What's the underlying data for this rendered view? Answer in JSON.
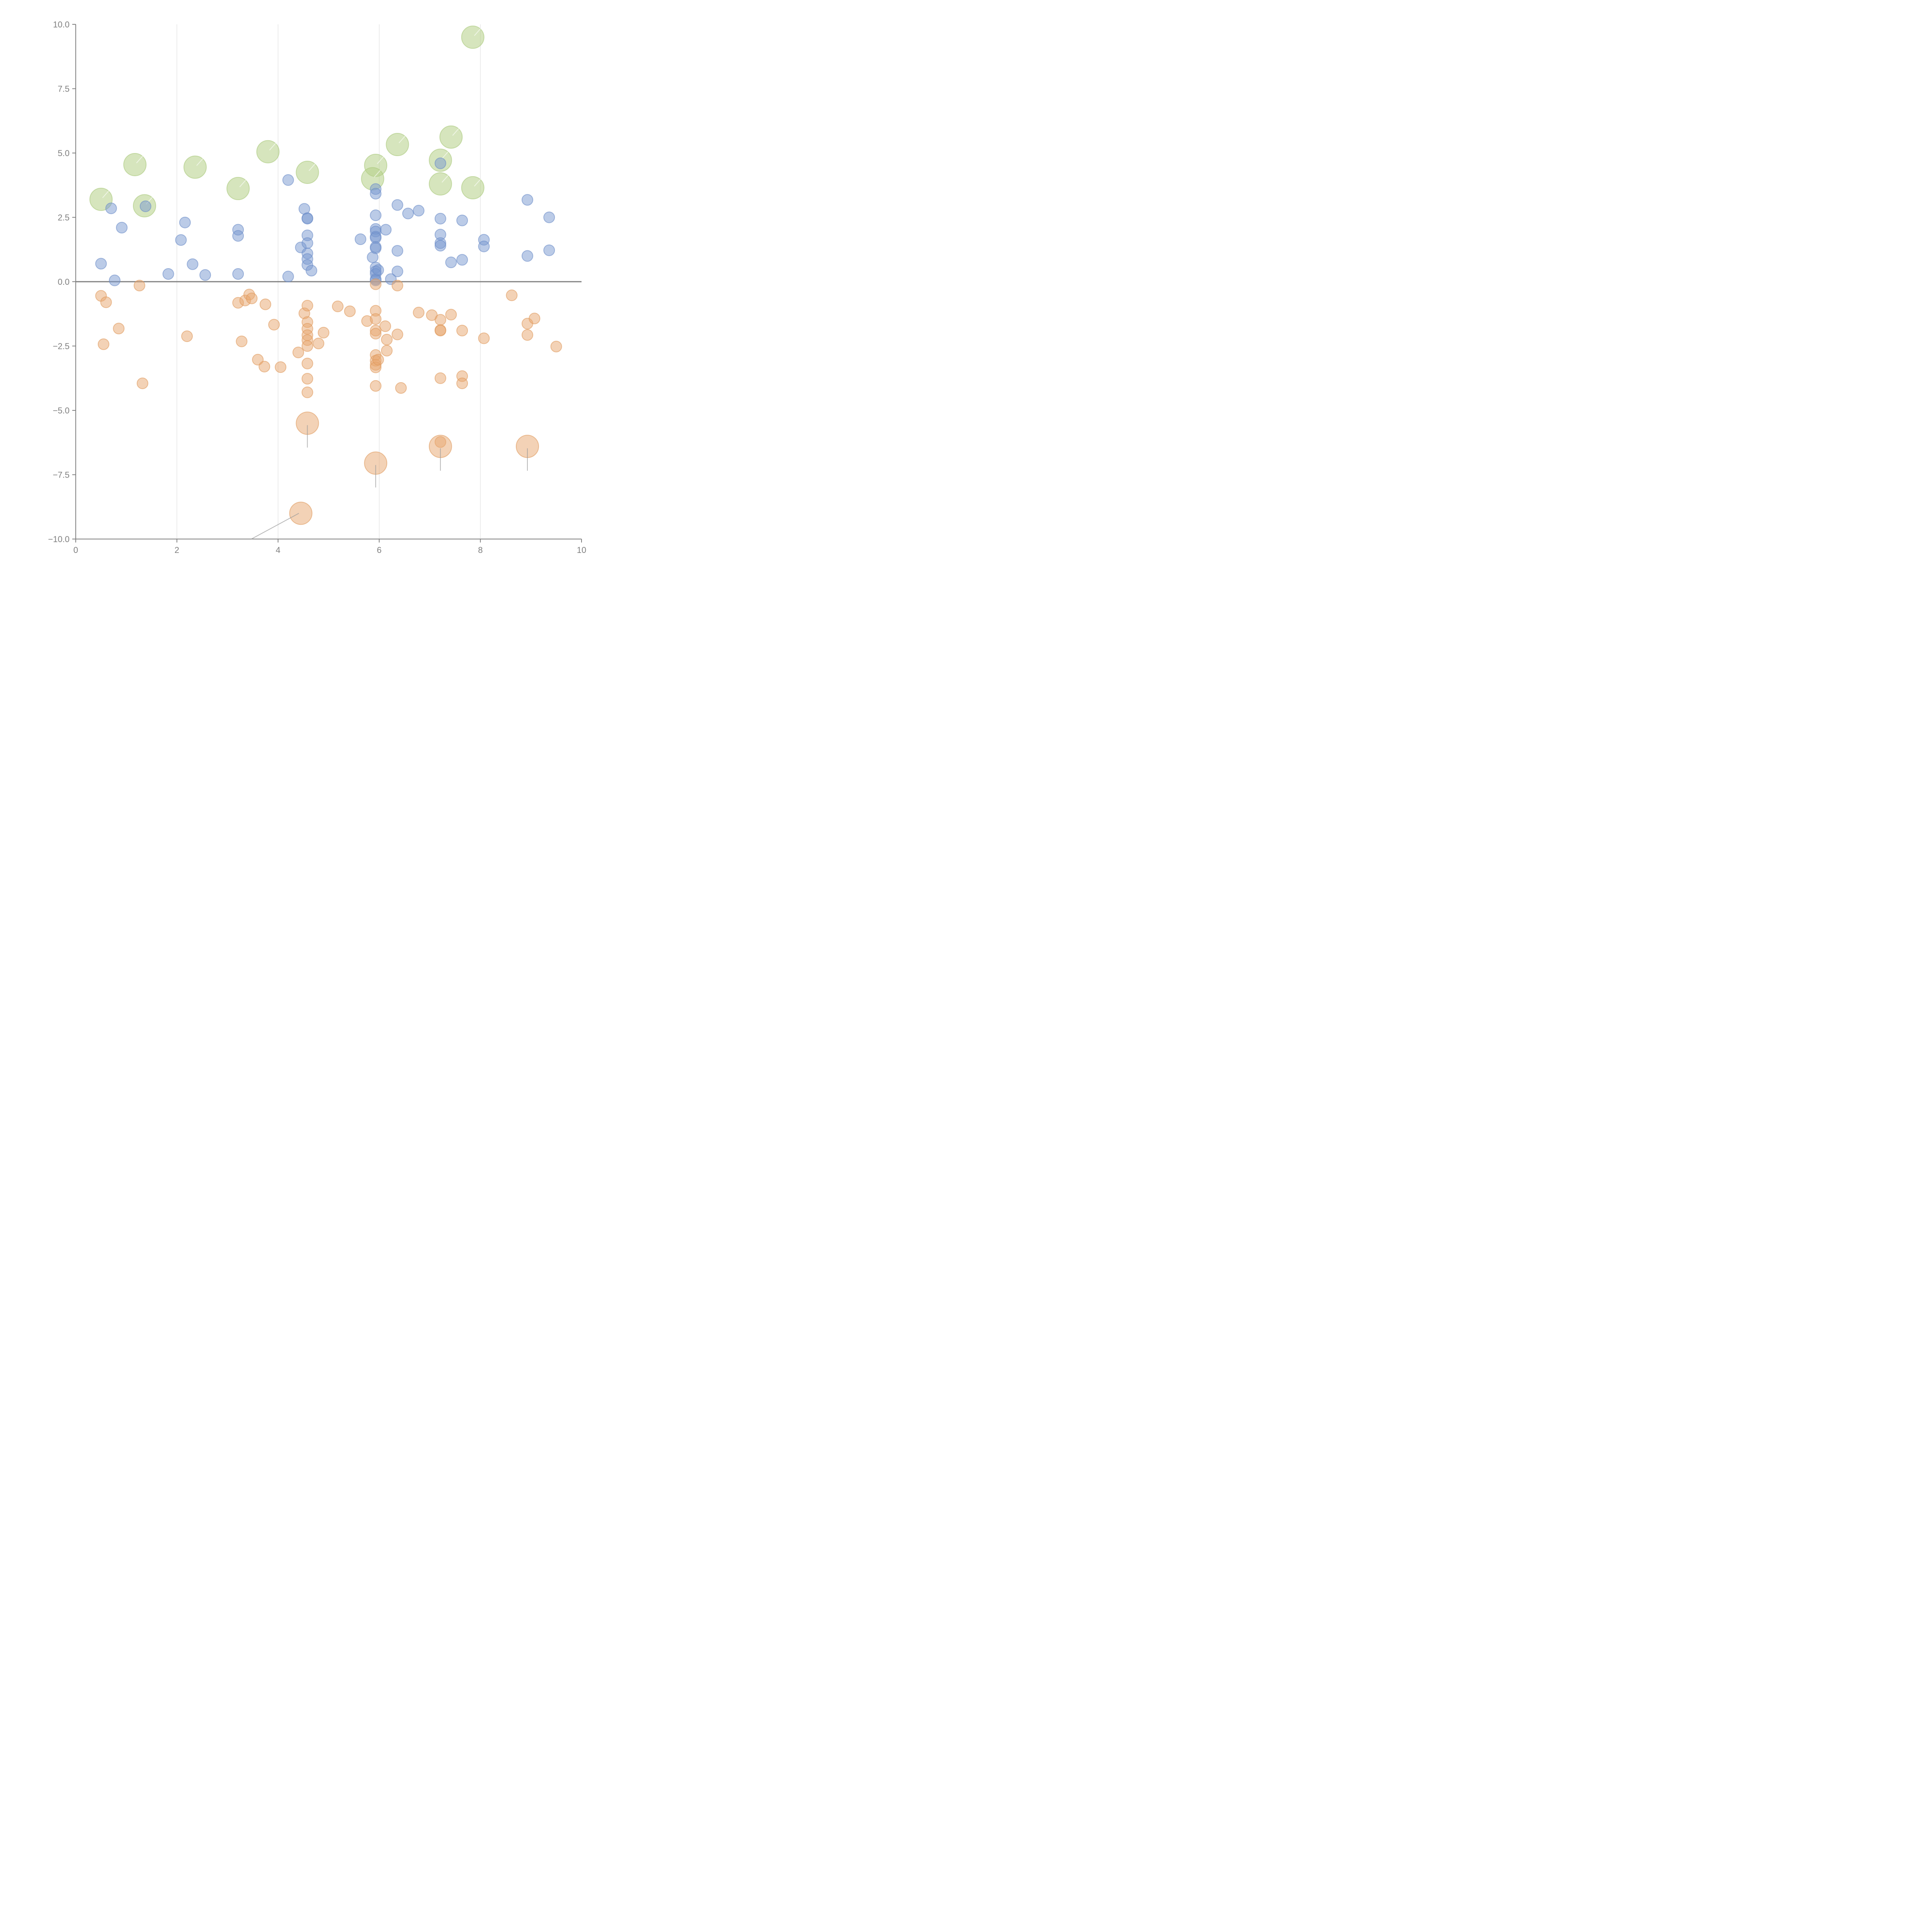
{
  "chart_data": {
    "type": "scatter",
    "title": "",
    "xlabel": "",
    "ylabel": "",
    "xlim": [
      0,
      10
    ],
    "ylim": [
      -10,
      10
    ],
    "grid": "vertical",
    "legend": "none",
    "x_ticks": [
      "0",
      "2",
      "4",
      "6",
      "8",
      "10"
    ],
    "y_ticks": [
      "10.0",
      "7.5",
      "5.0",
      "2.5",
      "0.0",
      "−2.5",
      "−5.0",
      "−7.5",
      "−10.0"
    ],
    "series": [
      {
        "name": "green",
        "color": "#b5cf87",
        "size": "large",
        "points": [
          [
            0.5,
            3.2
          ],
          [
            1.17,
            4.55
          ],
          [
            1.36,
            2.95
          ],
          [
            2.36,
            4.45
          ],
          [
            3.21,
            3.62
          ],
          [
            3.8,
            5.05
          ],
          [
            4.58,
            4.25
          ],
          [
            5.93,
            4.52
          ],
          [
            5.87,
            4.0
          ],
          [
            6.36,
            5.33
          ],
          [
            7.21,
            4.72
          ],
          [
            7.21,
            3.8
          ],
          [
            7.42,
            5.62
          ],
          [
            7.85,
            3.65
          ],
          [
            7.85,
            9.5
          ]
        ]
      },
      {
        "name": "blue",
        "color": "#7898cf",
        "size": "small",
        "points": [
          [
            0.5,
            0.7
          ],
          [
            0.7,
            2.85
          ],
          [
            0.77,
            0.05
          ],
          [
            0.91,
            2.1
          ],
          [
            1.38,
            2.93
          ],
          [
            1.83,
            0.3
          ],
          [
            2.08,
            1.62
          ],
          [
            2.16,
            2.3
          ],
          [
            2.31,
            0.68
          ],
          [
            2.56,
            0.26
          ],
          [
            3.21,
            2.02
          ],
          [
            3.21,
            1.78
          ],
          [
            3.21,
            0.3
          ],
          [
            4.2,
            3.95
          ],
          [
            4.2,
            0.2
          ],
          [
            4.45,
            1.33
          ],
          [
            4.52,
            2.83
          ],
          [
            4.58,
            2.47
          ],
          [
            4.58,
            2.45
          ],
          [
            4.58,
            1.8
          ],
          [
            4.58,
            1.5
          ],
          [
            4.58,
            1.1
          ],
          [
            4.58,
            0.88
          ],
          [
            4.58,
            0.65
          ],
          [
            4.66,
            0.43
          ],
          [
            5.63,
            1.65
          ],
          [
            5.87,
            0.95
          ],
          [
            5.93,
            3.6
          ],
          [
            5.93,
            3.42
          ],
          [
            5.93,
            2.58
          ],
          [
            5.93,
            2.05
          ],
          [
            5.93,
            1.95
          ],
          [
            5.93,
            1.75
          ],
          [
            5.93,
            1.7
          ],
          [
            5.93,
            1.35
          ],
          [
            5.93,
            1.3
          ],
          [
            5.93,
            0.55
          ],
          [
            5.93,
            0.4
          ],
          [
            5.93,
            0.3
          ],
          [
            5.93,
            0.1
          ],
          [
            5.93,
            0.05
          ],
          [
            5.98,
            0.45
          ],
          [
            6.13,
            2.02
          ],
          [
            6.23,
            0.1
          ],
          [
            6.36,
            2.98
          ],
          [
            6.36,
            1.2
          ],
          [
            6.36,
            0.4
          ],
          [
            6.57,
            2.65
          ],
          [
            6.78,
            2.76
          ],
          [
            7.21,
            4.6
          ],
          [
            7.21,
            2.45
          ],
          [
            7.21,
            1.83
          ],
          [
            7.21,
            1.5
          ],
          [
            7.21,
            1.4
          ],
          [
            7.42,
            0.75
          ],
          [
            7.64,
            2.38
          ],
          [
            7.64,
            0.85
          ],
          [
            8.07,
            1.63
          ],
          [
            8.07,
            1.37
          ],
          [
            8.93,
            3.18
          ],
          [
            8.93,
            1.0
          ],
          [
            9.36,
            2.5
          ],
          [
            9.36,
            1.22
          ]
        ]
      },
      {
        "name": "orange",
        "color": "#e8a66e",
        "size": "small",
        "points": [
          [
            0.5,
            -0.55
          ],
          [
            0.55,
            -2.43
          ],
          [
            0.6,
            -0.8
          ],
          [
            0.85,
            -1.82
          ],
          [
            1.26,
            -0.15
          ],
          [
            1.32,
            -3.95
          ],
          [
            2.2,
            -2.12
          ],
          [
            3.21,
            -0.82
          ],
          [
            3.28,
            -2.32
          ],
          [
            3.35,
            -0.73
          ],
          [
            3.43,
            -0.5
          ],
          [
            3.48,
            -0.65
          ],
          [
            3.6,
            -3.03
          ],
          [
            3.73,
            -3.3
          ],
          [
            3.75,
            -0.88
          ],
          [
            3.92,
            -1.67
          ],
          [
            4.05,
            -3.32
          ],
          [
            4.4,
            -2.75
          ],
          [
            4.52,
            -1.23
          ],
          [
            4.58,
            -0.93
          ],
          [
            4.58,
            -1.57
          ],
          [
            4.58,
            -1.83
          ],
          [
            4.58,
            -2.08
          ],
          [
            4.58,
            -2.27
          ],
          [
            4.58,
            -2.5
          ],
          [
            4.58,
            -3.18
          ],
          [
            4.58,
            -3.77
          ],
          [
            4.58,
            -4.3
          ],
          [
            4.8,
            -2.4
          ],
          [
            4.9,
            -1.98
          ],
          [
            5.18,
            -0.96
          ],
          [
            5.42,
            -1.15
          ],
          [
            5.76,
            -1.53
          ],
          [
            5.93,
            -0.1
          ],
          [
            5.93,
            -1.13
          ],
          [
            5.93,
            -1.45
          ],
          [
            5.93,
            -1.9
          ],
          [
            5.93,
            -2.02
          ],
          [
            5.93,
            -2.85
          ],
          [
            5.93,
            -3.07
          ],
          [
            5.93,
            -3.23
          ],
          [
            5.93,
            -3.33
          ],
          [
            5.93,
            -4.05
          ],
          [
            5.98,
            -3.03
          ],
          [
            6.12,
            -1.73
          ],
          [
            6.15,
            -2.25
          ],
          [
            6.15,
            -2.68
          ],
          [
            6.36,
            -0.15
          ],
          [
            6.36,
            -2.05
          ],
          [
            6.43,
            -4.13
          ],
          [
            6.78,
            -1.2
          ],
          [
            7.04,
            -1.3
          ],
          [
            7.21,
            -1.48
          ],
          [
            7.21,
            -1.88
          ],
          [
            7.21,
            -1.9
          ],
          [
            7.21,
            -3.75
          ],
          [
            7.21,
            -6.23
          ],
          [
            7.42,
            -1.28
          ],
          [
            7.64,
            -1.9
          ],
          [
            7.64,
            -3.67
          ],
          [
            7.64,
            -3.95
          ],
          [
            8.07,
            -2.2
          ],
          [
            8.62,
            -0.53
          ],
          [
            8.93,
            -1.63
          ],
          [
            8.93,
            -2.07
          ],
          [
            9.07,
            -1.43
          ],
          [
            9.5,
            -2.52
          ]
        ]
      },
      {
        "name": "orange-large",
        "color": "#e8a66e",
        "size": "large",
        "points": [
          [
            4.58,
            -5.5
          ],
          [
            4.45,
            -9.0
          ],
          [
            5.93,
            -7.05
          ],
          [
            7.21,
            -6.4
          ],
          [
            8.93,
            -6.4
          ]
        ]
      }
    ]
  }
}
